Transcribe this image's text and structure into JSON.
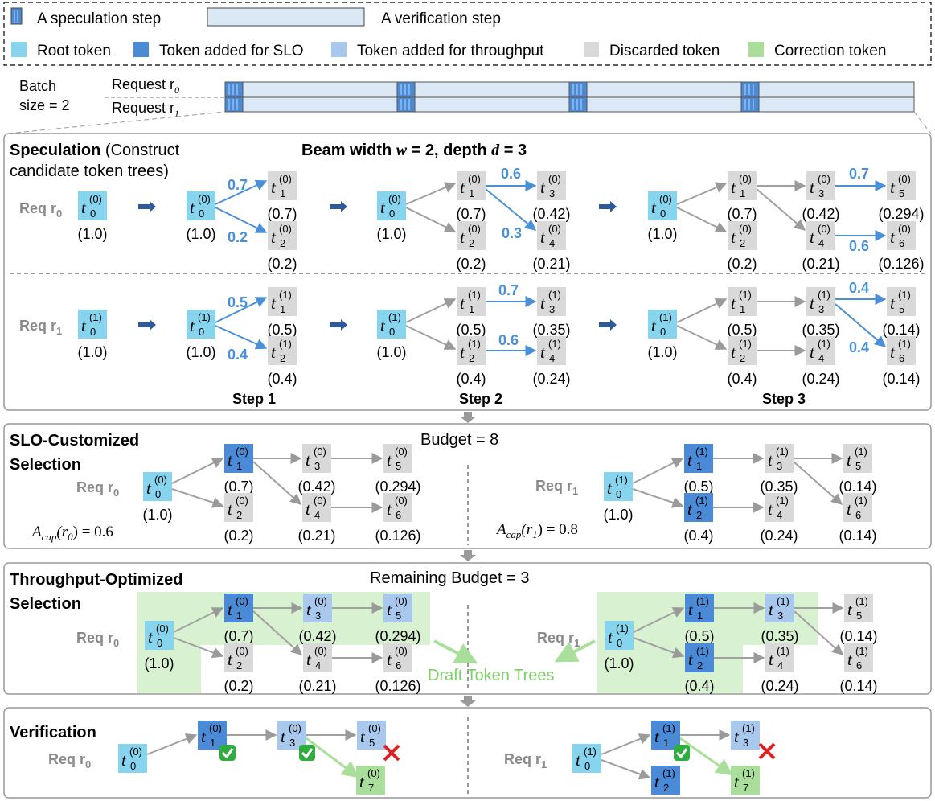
{
  "legend": {
    "speculation": "A speculation step",
    "verification": "A verification step",
    "root": "Root token",
    "slo": "Token added for SLO",
    "thr": "Token added for throughput",
    "disc": "Discarded token",
    "corr": "Correction token"
  },
  "batch": {
    "line1": "Batch",
    "line2": "size = 2",
    "req0": "Request r",
    "req1": "Request r",
    "sub0": "0",
    "sub1": "1"
  },
  "spec": {
    "title": "Speculation",
    "title_rest": " (Construct",
    "title_line2": "candidate token trees)",
    "beam": "Beam width ",
    "w": "w",
    "beam_mid": " = 2, depth ",
    "d": "d",
    "beam_end": " = 3",
    "step1": "Step 1",
    "step2": "Step 2",
    "step3": "Step 3"
  },
  "slo": {
    "title1": "SLO-Customized",
    "title2": "Selection",
    "budget": "Budget = 8",
    "acap0": "A",
    "acap0_sub": "cap",
    "acap0_rest": "(r",
    "acap0_val": ") = 0.6",
    "acap1_val": ") = 0.8"
  },
  "thr": {
    "title1": "Throughput-Optimized",
    "title2": "Selection",
    "budget": "Remaining Budget = 3",
    "draft": "Draft Token Trees"
  },
  "ver": {
    "title": "Verification"
  },
  "req": {
    "label": "Req r",
    "s0": "0",
    "s1": "1"
  },
  "tokens": {
    "t": "t",
    "probs": {
      "p10": "(1.0)",
      "p07": "(0.7)",
      "p02": "(0.2)",
      "p042": "(0.42)",
      "p021": "(0.21)",
      "p0294": "(0.294)",
      "p0126": "(0.126)",
      "p05": "(0.5)",
      "p04": "(0.4)",
      "p035": "(0.35)",
      "p024": "(0.24)",
      "p014": "(0.14)"
    },
    "edges": {
      "e07": "0.7",
      "e02": "0.2",
      "e06": "0.6",
      "e03": "0.3",
      "e05": "0.5",
      "e04": "0.4"
    }
  },
  "colors": {
    "root": "#87d4ee",
    "slo": "#4a8ad6",
    "thr": "#a9c8ee",
    "disc": "#d9d9d9",
    "corr": "#a9df9a",
    "verif": "#dbe9f7"
  }
}
